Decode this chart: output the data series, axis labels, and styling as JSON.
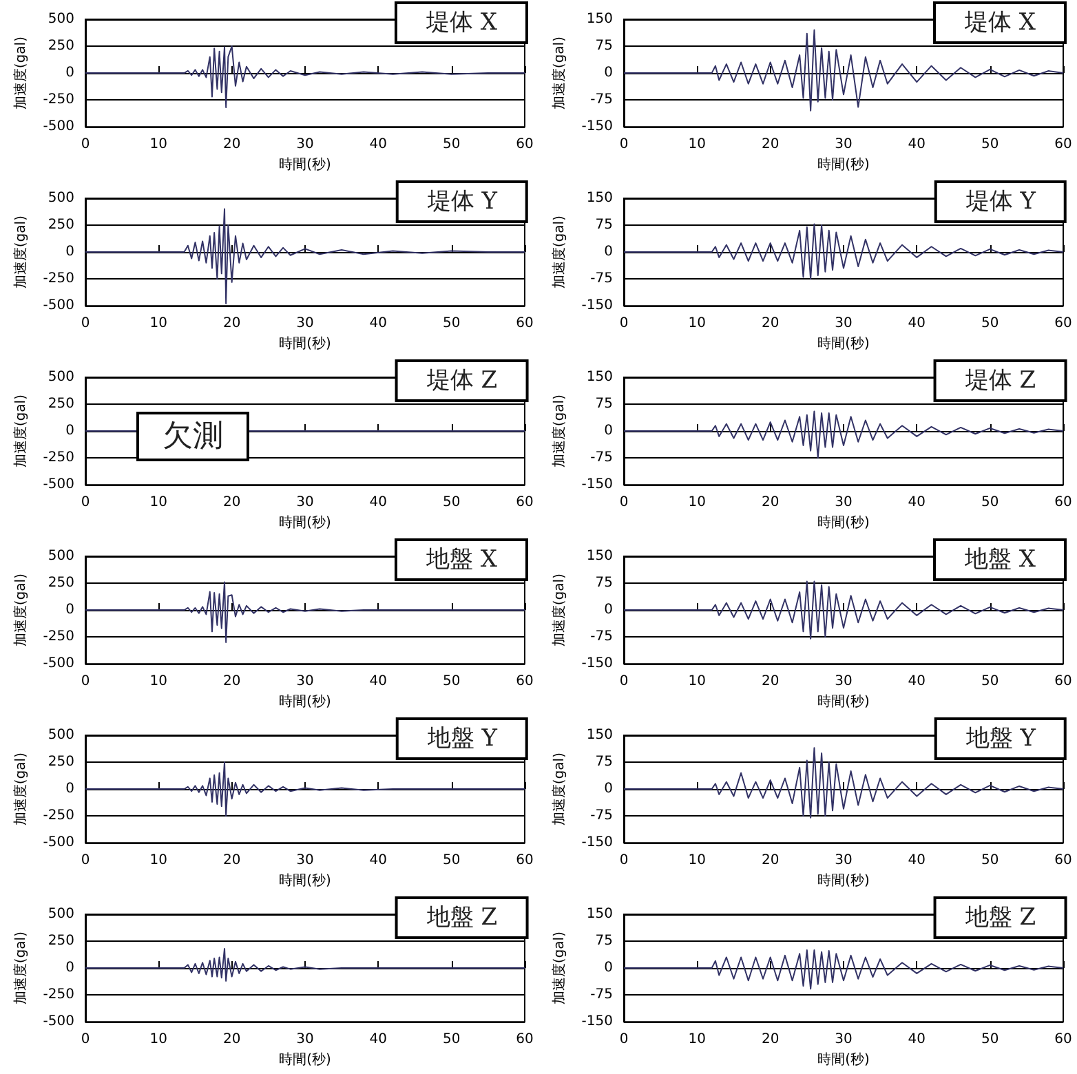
{
  "chart_data": [
    {
      "type": "line",
      "title": "堤体 X",
      "xlabel": "時間(秒)",
      "ylabel": "加速度(gal)",
      "xlim": [
        0,
        60
      ],
      "xticks": [
        0,
        10,
        20,
        30,
        40,
        50,
        60
      ],
      "ylim": [
        -500,
        500
      ],
      "yticks": [
        -500,
        -250,
        0,
        250,
        500
      ],
      "grid": "y",
      "x": [
        0,
        13.5,
        14,
        14.5,
        15,
        15.5,
        16,
        16.5,
        17,
        17.3,
        17.6,
        18,
        18.3,
        18.6,
        19,
        19.2,
        19.5,
        20,
        20.5,
        21,
        21.5,
        22,
        23,
        24,
        25,
        26,
        27,
        28,
        30,
        32,
        35,
        38,
        42,
        46,
        50,
        55,
        60
      ],
      "series": [
        {
          "color": "#333366",
          "values": [
            0,
            0,
            20,
            -20,
            30,
            -30,
            30,
            -40,
            150,
            -220,
            230,
            -150,
            200,
            -180,
            240,
            -320,
            150,
            250,
            -120,
            100,
            -80,
            60,
            -50,
            40,
            -40,
            30,
            -30,
            20,
            -20,
            10,
            -10,
            10,
            -10,
            10,
            -10,
            0,
            0
          ]
        }
      ]
    },
    {
      "type": "line",
      "title": "堤体 X",
      "xlabel": "時間(秒)",
      "ylabel": "加速度(gal)",
      "xlim": [
        0,
        60
      ],
      "xticks": [
        0,
        10,
        20,
        30,
        40,
        50,
        60
      ],
      "ylim": [
        -150,
        150
      ],
      "yticks": [
        -150,
        -75,
        0,
        75,
        150
      ],
      "grid": "y",
      "x": [
        0,
        12,
        12.5,
        13,
        14,
        15,
        16,
        17,
        18,
        19,
        20,
        21,
        22,
        23,
        24,
        24.5,
        25,
        25.5,
        26,
        26.5,
        27,
        27.5,
        28,
        28.5,
        29,
        30,
        31,
        32,
        33,
        34,
        35,
        36,
        38,
        40,
        42,
        44,
        46,
        48,
        50,
        52,
        54,
        56,
        58,
        60
      ],
      "series": [
        {
          "color": "#333366",
          "values": [
            0,
            0,
            20,
            -20,
            25,
            -25,
            30,
            -30,
            25,
            -30,
            30,
            -30,
            35,
            -40,
            50,
            -70,
            110,
            -105,
            120,
            -80,
            70,
            -70,
            60,
            -75,
            65,
            -60,
            50,
            -95,
            45,
            -40,
            35,
            -30,
            25,
            -25,
            20,
            -20,
            15,
            -12,
            10,
            -10,
            8,
            -8,
            6,
            0
          ]
        }
      ]
    },
    {
      "type": "line",
      "title": "堤体 Y",
      "xlabel": "時間(秒)",
      "ylabel": "加速度(gal)",
      "xlim": [
        0,
        60
      ],
      "xticks": [
        0,
        10,
        20,
        30,
        40,
        50,
        60
      ],
      "ylim": [
        -500,
        500
      ],
      "yticks": [
        -500,
        -250,
        0,
        250,
        500
      ],
      "grid": "y",
      "x": [
        0,
        13.5,
        14,
        14.5,
        15,
        15.5,
        16,
        16.5,
        17,
        17.3,
        17.6,
        18,
        18.3,
        18.6,
        19,
        19.2,
        19.5,
        20,
        20.5,
        21,
        21.5,
        22,
        23,
        24,
        25,
        26,
        27,
        28,
        30,
        32,
        35,
        38,
        42,
        46,
        50,
        55,
        60
      ],
      "series": [
        {
          "color": "#333366",
          "values": [
            0,
            0,
            60,
            -60,
            90,
            -80,
            100,
            -100,
            150,
            -150,
            180,
            -250,
            240,
            -200,
            400,
            -480,
            250,
            -280,
            150,
            -100,
            80,
            -70,
            60,
            -50,
            50,
            -40,
            40,
            -30,
            30,
            -20,
            20,
            -20,
            10,
            -10,
            10,
            0,
            0
          ]
        }
      ]
    },
    {
      "type": "line",
      "title": "堤体 Y",
      "xlabel": "時間(秒)",
      "ylabel": "加速度(gal)",
      "xlim": [
        0,
        60
      ],
      "xticks": [
        0,
        10,
        20,
        30,
        40,
        50,
        60
      ],
      "ylim": [
        -150,
        150
      ],
      "yticks": [
        -150,
        -75,
        0,
        75,
        150
      ],
      "grid": "y",
      "x": [
        0,
        12,
        12.5,
        13,
        14,
        15,
        16,
        17,
        18,
        19,
        20,
        21,
        22,
        23,
        24,
        24.5,
        25,
        25.5,
        26,
        26.5,
        27,
        27.5,
        28,
        28.5,
        29,
        30,
        31,
        32,
        33,
        34,
        35,
        36,
        38,
        40,
        42,
        44,
        46,
        48,
        50,
        52,
        54,
        56,
        58,
        60
      ],
      "series": [
        {
          "color": "#333366",
          "values": [
            0,
            0,
            15,
            -15,
            20,
            -20,
            25,
            -25,
            25,
            -25,
            25,
            -25,
            25,
            -30,
            60,
            -70,
            70,
            -75,
            78,
            -65,
            75,
            -55,
            60,
            -50,
            55,
            -45,
            45,
            -40,
            35,
            -30,
            25,
            -25,
            20,
            -15,
            15,
            -12,
            10,
            -10,
            8,
            -8,
            6,
            -6,
            5,
            0
          ]
        }
      ]
    },
    {
      "type": "line",
      "title": "堤体 Z",
      "xlabel": "時間(秒)",
      "ylabel": "加速度(gal)",
      "xlim": [
        0,
        60
      ],
      "xticks": [
        0,
        10,
        20,
        30,
        40,
        50,
        60
      ],
      "ylim": [
        -500,
        500
      ],
      "yticks": [
        -500,
        -250,
        0,
        250,
        500
      ],
      "grid": "y",
      "annotations": [
        "欠測"
      ],
      "x": [
        0,
        60
      ],
      "series": [
        {
          "color": "#333366",
          "values": [
            0,
            0
          ]
        }
      ]
    },
    {
      "type": "line",
      "title": "堤体 Z",
      "xlabel": "時間(秒)",
      "ylabel": "加速度(gal)",
      "xlim": [
        0,
        60
      ],
      "xticks": [
        0,
        10,
        20,
        30,
        40,
        50,
        60
      ],
      "ylim": [
        -150,
        150
      ],
      "yticks": [
        -150,
        -75,
        0,
        75,
        150
      ],
      "grid": "y",
      "x": [
        0,
        12,
        12.5,
        13,
        14,
        15,
        16,
        17,
        18,
        19,
        20,
        21,
        22,
        23,
        24,
        24.5,
        25,
        25.5,
        26,
        26.5,
        27,
        27.5,
        28,
        28.5,
        29,
        30,
        31,
        32,
        33,
        34,
        35,
        36,
        38,
        40,
        42,
        44,
        46,
        48,
        50,
        52,
        54,
        56,
        58,
        60
      ],
      "series": [
        {
          "color": "#333366",
          "values": [
            0,
            0,
            15,
            -15,
            20,
            -20,
            20,
            -25,
            20,
            -25,
            25,
            -25,
            30,
            -30,
            40,
            -40,
            45,
            -55,
            55,
            -75,
            50,
            -45,
            50,
            -45,
            45,
            -40,
            40,
            -30,
            30,
            -25,
            20,
            -20,
            15,
            -15,
            12,
            -10,
            10,
            -8,
            8,
            -6,
            6,
            -5,
            5,
            0
          ]
        }
      ]
    },
    {
      "type": "line",
      "title": "地盤 X",
      "xlabel": "時間(秒)",
      "ylabel": "加速度(gal)",
      "xlim": [
        0,
        60
      ],
      "xticks": [
        0,
        10,
        20,
        30,
        40,
        50,
        60
      ],
      "ylim": [
        -500,
        500
      ],
      "yticks": [
        -500,
        -250,
        0,
        250,
        500
      ],
      "grid": "y",
      "x": [
        0,
        13.5,
        14,
        14.5,
        15,
        15.5,
        16,
        16.5,
        17,
        17.3,
        17.6,
        18,
        18.3,
        18.6,
        19,
        19.2,
        19.5,
        20,
        20.5,
        21,
        21.5,
        22,
        23,
        24,
        25,
        26,
        27,
        28,
        30,
        32,
        35,
        38,
        42,
        46,
        50,
        55,
        60
      ],
      "series": [
        {
          "color": "#333366",
          "values": [
            0,
            0,
            20,
            -20,
            20,
            -30,
            30,
            -40,
            170,
            -200,
            160,
            -140,
            150,
            -170,
            260,
            -300,
            130,
            140,
            -60,
            50,
            -40,
            40,
            -30,
            30,
            -20,
            20,
            -20,
            10,
            -10,
            10,
            -10,
            0,
            0,
            0,
            0,
            0,
            0
          ]
        }
      ]
    },
    {
      "type": "line",
      "title": "地盤 X",
      "xlabel": "時間(秒)",
      "ylabel": "加速度(gal)",
      "xlim": [
        0,
        60
      ],
      "xticks": [
        0,
        10,
        20,
        30,
        40,
        50,
        60
      ],
      "ylim": [
        -150,
        150
      ],
      "yticks": [
        -150,
        -75,
        0,
        75,
        150
      ],
      "grid": "y",
      "x": [
        0,
        12,
        12.5,
        13,
        14,
        15,
        16,
        17,
        18,
        19,
        20,
        21,
        22,
        23,
        24,
        24.5,
        25,
        25.5,
        26,
        26.5,
        27,
        27.5,
        28,
        28.5,
        29,
        30,
        31,
        32,
        33,
        34,
        35,
        36,
        38,
        40,
        42,
        44,
        46,
        48,
        50,
        52,
        54,
        56,
        58,
        60
      ],
      "series": [
        {
          "color": "#333366",
          "values": [
            0,
            0,
            15,
            -15,
            20,
            -20,
            20,
            -25,
            25,
            -25,
            30,
            -30,
            30,
            -35,
            50,
            -60,
            80,
            -80,
            80,
            -60,
            70,
            -75,
            65,
            -50,
            45,
            -50,
            40,
            -35,
            30,
            -30,
            25,
            -25,
            20,
            -15,
            15,
            -12,
            12,
            -10,
            8,
            -8,
            6,
            -6,
            5,
            0
          ]
        }
      ]
    },
    {
      "type": "line",
      "title": "地盤 Y",
      "xlabel": "時間(秒)",
      "ylabel": "加速度(gal)",
      "xlim": [
        0,
        60
      ],
      "xticks": [
        0,
        10,
        20,
        30,
        40,
        50,
        60
      ],
      "ylim": [
        -500,
        500
      ],
      "yticks": [
        -500,
        -250,
        0,
        250,
        500
      ],
      "grid": "y",
      "x": [
        0,
        13.5,
        14,
        14.5,
        15,
        15.5,
        16,
        16.5,
        17,
        17.3,
        17.6,
        18,
        18.3,
        18.6,
        19,
        19.2,
        19.5,
        20,
        20.5,
        21,
        21.5,
        22,
        23,
        24,
        25,
        26,
        27,
        28,
        30,
        32,
        35,
        38,
        42,
        46,
        50,
        55,
        60
      ],
      "series": [
        {
          "color": "#333366",
          "values": [
            0,
            0,
            20,
            -20,
            30,
            -30,
            30,
            -60,
            100,
            -120,
            130,
            -140,
            150,
            -160,
            250,
            -250,
            100,
            -90,
            60,
            -50,
            40,
            -40,
            40,
            -30,
            30,
            -20,
            20,
            -20,
            10,
            -10,
            10,
            -10,
            0,
            0,
            0,
            0,
            0
          ]
        }
      ]
    },
    {
      "type": "line",
      "title": "地盤 Y",
      "xlabel": "時間(秒)",
      "ylabel": "加速度(gal)",
      "xlim": [
        0,
        60
      ],
      "xticks": [
        0,
        10,
        20,
        30,
        40,
        50,
        60
      ],
      "ylim": [
        -150,
        150
      ],
      "yticks": [
        -150,
        -75,
        0,
        75,
        150
      ],
      "grid": "y",
      "x": [
        0,
        12,
        12.5,
        13,
        14,
        15,
        16,
        17,
        18,
        19,
        20,
        21,
        22,
        23,
        24,
        24.5,
        25,
        25.5,
        26,
        26.5,
        27,
        27.5,
        28,
        28.5,
        29,
        30,
        31,
        32,
        33,
        34,
        35,
        36,
        38,
        40,
        42,
        44,
        46,
        48,
        50,
        52,
        54,
        56,
        58,
        60
      ],
      "series": [
        {
          "color": "#333366",
          "values": [
            0,
            0,
            15,
            -15,
            20,
            -20,
            45,
            -25,
            20,
            -25,
            25,
            -25,
            30,
            -40,
            60,
            -75,
            80,
            -80,
            115,
            -70,
            100,
            -75,
            75,
            -60,
            70,
            -55,
            50,
            -45,
            40,
            -35,
            30,
            -25,
            20,
            -20,
            15,
            -15,
            12,
            -10,
            10,
            -8,
            8,
            -6,
            5,
            0
          ]
        }
      ]
    },
    {
      "type": "line",
      "title": "地盤 Z",
      "xlabel": "時間(秒)",
      "ylabel": "加速度(gal)",
      "xlim": [
        0,
        60
      ],
      "xticks": [
        0,
        10,
        20,
        30,
        40,
        50,
        60
      ],
      "ylim": [
        -500,
        500
      ],
      "yticks": [
        -500,
        -250,
        0,
        250,
        500
      ],
      "grid": "y",
      "x": [
        0,
        13.5,
        14,
        14.5,
        15,
        15.5,
        16,
        16.5,
        17,
        17.3,
        17.6,
        18,
        18.3,
        18.6,
        19,
        19.2,
        19.5,
        20,
        20.5,
        21,
        21.5,
        22,
        23,
        24,
        25,
        26,
        27,
        28,
        30,
        32,
        35,
        38,
        42,
        46,
        50,
        55,
        60
      ],
      "series": [
        {
          "color": "#333366",
          "values": [
            0,
            0,
            30,
            -40,
            40,
            -50,
            50,
            -60,
            70,
            -80,
            90,
            -80,
            100,
            -90,
            180,
            -120,
            90,
            -80,
            60,
            -50,
            40,
            -30,
            30,
            -30,
            20,
            -20,
            10,
            -10,
            10,
            -10,
            0,
            0,
            0,
            0,
            0,
            0,
            0
          ]
        }
      ]
    },
    {
      "type": "line",
      "title": "地盤 Z",
      "xlabel": "時間(秒)",
      "ylabel": "加速度(gal)",
      "xlim": [
        0,
        60
      ],
      "xticks": [
        0,
        10,
        20,
        30,
        40,
        50,
        60
      ],
      "ylim": [
        -150,
        150
      ],
      "yticks": [
        -150,
        -75,
        0,
        75,
        150
      ],
      "grid": "y",
      "x": [
        0,
        12,
        12.5,
        13,
        14,
        15,
        16,
        17,
        18,
        19,
        20,
        21,
        22,
        23,
        24,
        24.5,
        25,
        25.5,
        26,
        26.5,
        27,
        27.5,
        28,
        28.5,
        29,
        30,
        31,
        32,
        33,
        34,
        35,
        36,
        38,
        40,
        42,
        44,
        46,
        48,
        50,
        52,
        54,
        56,
        58,
        60
      ],
      "series": [
        {
          "color": "#333366",
          "values": [
            0,
            0,
            20,
            -20,
            30,
            -30,
            30,
            -35,
            30,
            -30,
            30,
            -35,
            35,
            -35,
            40,
            -50,
            50,
            -58,
            50,
            -45,
            45,
            -40,
            48,
            -40,
            40,
            -35,
            35,
            -30,
            30,
            -25,
            25,
            -20,
            15,
            -15,
            12,
            -10,
            10,
            -8,
            8,
            -6,
            6,
            -5,
            5,
            0
          ]
        }
      ]
    }
  ]
}
